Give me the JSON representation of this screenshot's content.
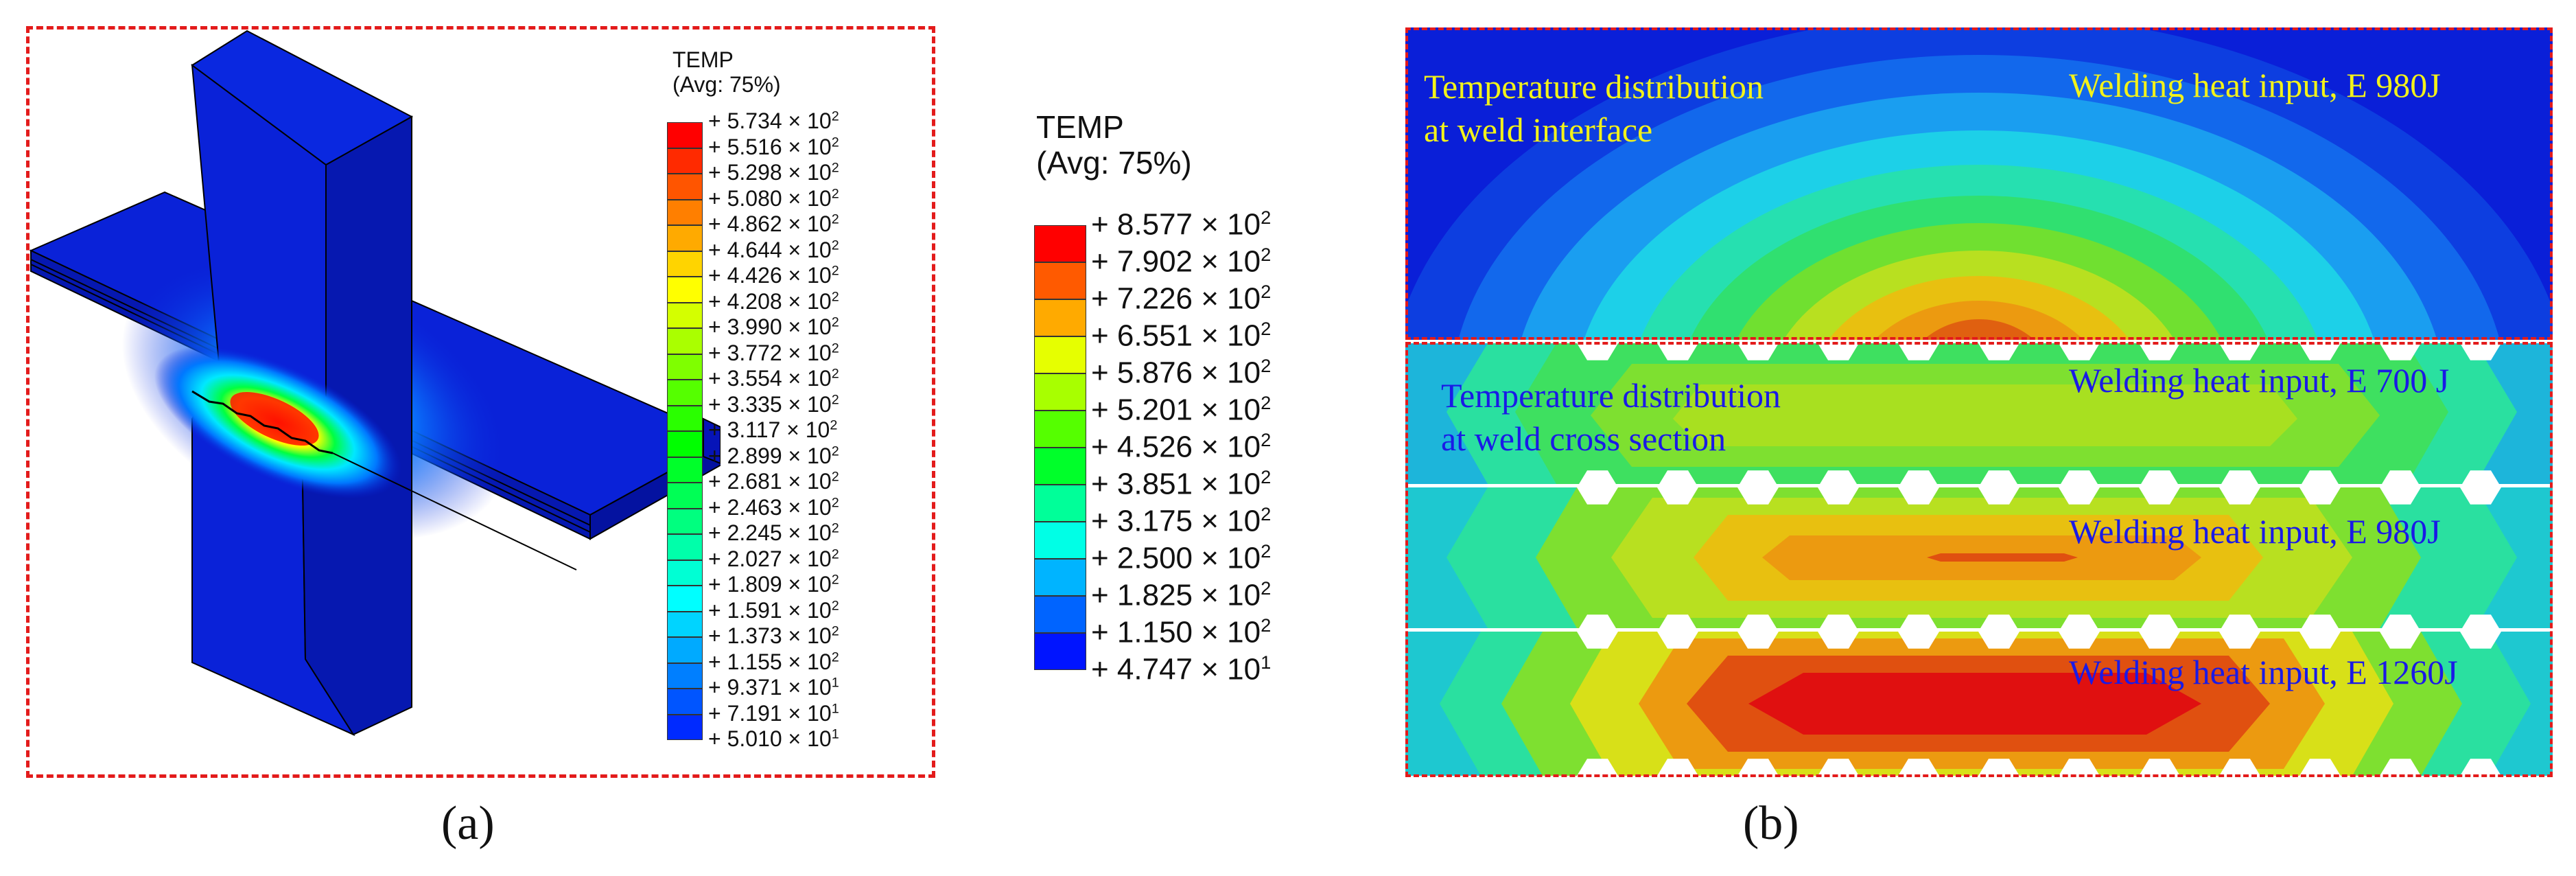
{
  "panel_a": {
    "label": "(a)",
    "legend": {
      "title_line1": "TEMP",
      "title_line2": "(Avg: 75%)",
      "entries": [
        {
          "text": "+ 5.734 × 10",
          "exp": "2",
          "color": "#ff0000"
        },
        {
          "text": "+ 5.516 × 10",
          "exp": "2",
          "color": "#ff2a00"
        },
        {
          "text": "+ 5.298 × 10",
          "exp": "2",
          "color": "#ff5500"
        },
        {
          "text": "+ 5.080 × 10",
          "exp": "2",
          "color": "#ff7f00"
        },
        {
          "text": "+ 4.862 × 10",
          "exp": "2",
          "color": "#ffaa00"
        },
        {
          "text": "+ 4.644 × 10",
          "exp": "2",
          "color": "#ffd400"
        },
        {
          "text": "+ 4.426 × 10",
          "exp": "2",
          "color": "#ffff00"
        },
        {
          "text": "+ 4.208 × 10",
          "exp": "2",
          "color": "#d4ff00"
        },
        {
          "text": "+ 3.990 × 10",
          "exp": "2",
          "color": "#aaff00"
        },
        {
          "text": "+ 3.772 × 10",
          "exp": "2",
          "color": "#7fff00"
        },
        {
          "text": "+ 3.554 × 10",
          "exp": "2",
          "color": "#55ff00"
        },
        {
          "text": "+ 3.335 × 10",
          "exp": "2",
          "color": "#2aff00"
        },
        {
          "text": "+ 3.117 × 10",
          "exp": "2",
          "color": "#00ff00"
        },
        {
          "text": "+ 2.899 × 10",
          "exp": "2",
          "color": "#00ff2a"
        },
        {
          "text": "+ 2.681 × 10",
          "exp": "2",
          "color": "#00ff55"
        },
        {
          "text": "+ 2.463 × 10",
          "exp": "2",
          "color": "#00ff7f"
        },
        {
          "text": "+ 2.245 × 10",
          "exp": "2",
          "color": "#00ffaa"
        },
        {
          "text": "+ 2.027 × 10",
          "exp": "2",
          "color": "#00ffd4"
        },
        {
          "text": "+ 1.809 × 10",
          "exp": "2",
          "color": "#00ffff"
        },
        {
          "text": "+ 1.591 × 10",
          "exp": "2",
          "color": "#00d4ff"
        },
        {
          "text": "+ 1.373 × 10",
          "exp": "2",
          "color": "#00aaff"
        },
        {
          "text": "+ 1.155 × 10",
          "exp": "2",
          "color": "#007fff"
        },
        {
          "text": "+ 9.371 × 10",
          "exp": "1",
          "color": "#0055ff"
        },
        {
          "text": "+ 7.191 × 10",
          "exp": "1",
          "color": "#002aff"
        },
        {
          "text": "+ 5.010 × 10",
          "exp": "1",
          "color": null
        }
      ]
    }
  },
  "middle_legend": {
    "title_line1": "TEMP",
    "title_line2": "(Avg: 75%)",
    "entries": [
      {
        "text": "+ 8.577 × 10",
        "exp": "2",
        "color": "#ff0000"
      },
      {
        "text": "+ 7.902 × 10",
        "exp": "2",
        "color": "#ff5a00"
      },
      {
        "text": "+ 7.226 × 10",
        "exp": "2",
        "color": "#ffaa00"
      },
      {
        "text": "+ 6.551 × 10",
        "exp": "2",
        "color": "#e6ff00"
      },
      {
        "text": "+ 5.876 × 10",
        "exp": "2",
        "color": "#a8ff00"
      },
      {
        "text": "+ 5.201 × 10",
        "exp": "2",
        "color": "#55ff00"
      },
      {
        "text": "+ 4.526 × 10",
        "exp": "2",
        "color": "#00ff2a"
      },
      {
        "text": "+ 3.851 × 10",
        "exp": "2",
        "color": "#00ff99"
      },
      {
        "text": "+ 3.175 × 10",
        "exp": "2",
        "color": "#00ffe6"
      },
      {
        "text": "+ 2.500 × 10",
        "exp": "2",
        "color": "#00b4ff"
      },
      {
        "text": "+ 1.825 × 10",
        "exp": "2",
        "color": "#0064ff"
      },
      {
        "text": "+ 1.150 × 10",
        "exp": "2",
        "color": "#0014ff"
      },
      {
        "text": "+ 4.747 × 10",
        "exp": "1",
        "color": null
      }
    ]
  },
  "panel_b": {
    "label": "(b)",
    "top_title_line1": "Temperature distribution",
    "top_title_line2": "at weld interface",
    "top_heat": "Welding heat input, E 980J",
    "cross_title_line1": "Temperature distribution",
    "cross_title_line2": "at weld cross section",
    "strip1_heat": "Welding heat input, E 700 J",
    "strip2_heat": "Welding heat input, E 980J",
    "strip3_heat": "Welding heat input, E 1260J"
  },
  "colors": {
    "dash_red": "#e31b1b",
    "annot_yellow": "#f2f21a",
    "annot_blue": "#1a1ae6",
    "solid_blue": "#0a1fd8"
  }
}
